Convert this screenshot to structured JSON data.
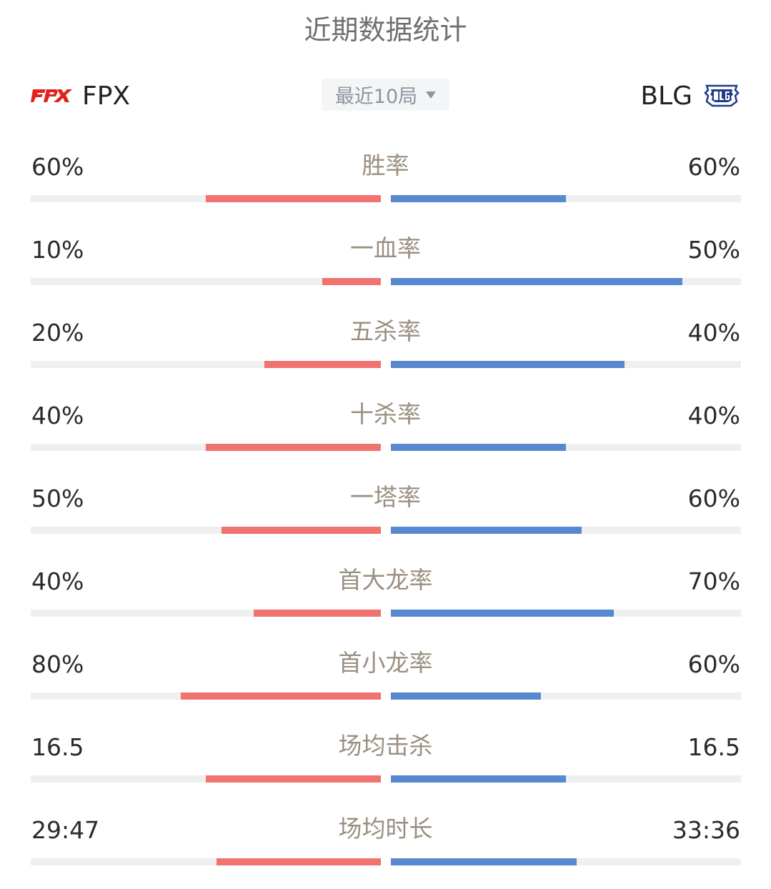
{
  "header": {
    "title": "近期数据统计",
    "range_label": "最近10局"
  },
  "teams": {
    "left": {
      "name": "FPX",
      "logo_text": "FPX",
      "color": "#e0231c"
    },
    "right": {
      "name": "BLG",
      "logo_text": "BLG",
      "color": "#1e3a8a"
    }
  },
  "colors": {
    "left_bar": "#f07370",
    "right_bar": "#5788d0",
    "track": "#efefef",
    "label": "#9a8f80"
  },
  "stats": [
    {
      "label": "胜率",
      "left": "60%",
      "right": "60%",
      "left_fill": 0.5,
      "right_fill": 0.5
    },
    {
      "label": "一血率",
      "left": "10%",
      "right": "50%",
      "left_fill": 0.167,
      "right_fill": 0.833
    },
    {
      "label": "五杀率",
      "left": "20%",
      "right": "40%",
      "left_fill": 0.333,
      "right_fill": 0.667
    },
    {
      "label": "十杀率",
      "left": "40%",
      "right": "40%",
      "left_fill": 0.5,
      "right_fill": 0.5
    },
    {
      "label": "一塔率",
      "left": "50%",
      "right": "60%",
      "left_fill": 0.455,
      "right_fill": 0.545
    },
    {
      "label": "首大龙率",
      "left": "40%",
      "right": "70%",
      "left_fill": 0.364,
      "right_fill": 0.636
    },
    {
      "label": "首小龙率",
      "left": "80%",
      "right": "60%",
      "left_fill": 0.571,
      "right_fill": 0.429
    },
    {
      "label": "场均击杀",
      "left": "16.5",
      "right": "16.5",
      "left_fill": 0.5,
      "right_fill": 0.5
    },
    {
      "label": "场均时长",
      "left": "29:47",
      "right": "33:36",
      "left_fill": 0.47,
      "right_fill": 0.53
    }
  ]
}
